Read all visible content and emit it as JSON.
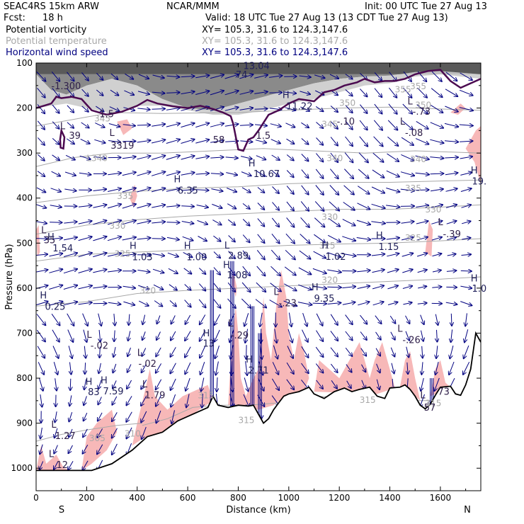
{
  "header": {
    "model": "SEAC4RS 15km ARW",
    "org": "NCAR/MMM",
    "init": "Init: 00 UTC Tue 27 Aug 13",
    "fcst_label": "Fcst:",
    "fcst_value": "18 h",
    "valid": "Valid: 18 UTC Tue 27 Aug 13 (13 CDT Tue 27 Aug 13)",
    "fields": [
      {
        "name": "Potential vorticity",
        "xy": "XY= 105.3, 31.6 to 124.3,147.6",
        "color": "#000000"
      },
      {
        "name": "Potential temperature",
        "xy": "XY= 105.3, 31.6 to 124.3,147.6",
        "color": "#a8a8a8"
      },
      {
        "name": "Horizontal wind speed",
        "xy": "XY= 105.3, 31.6 to 124.3,147.6",
        "color": "#000080"
      }
    ]
  },
  "colors": {
    "terrain": "#000000",
    "pv_line": "#4b0a50",
    "theta": "#a8a8a8",
    "wind": "#000080",
    "pink": "#f7b8b8",
    "grey_dark": "#5a5a5a",
    "grey_light": "#c8c8c8"
  },
  "chart_data": {
    "type": "cross-section",
    "xlabel": "Distance (km)",
    "ylabel": "Pressure (hPa)",
    "xlim": [
      0,
      1760
    ],
    "ylim": [
      1050,
      100
    ],
    "x_ticks": [
      "0",
      "200",
      "400",
      "600",
      "800",
      "1000",
      "1200",
      "1400",
      "1600"
    ],
    "y_ticks": [
      "100",
      "200",
      "300",
      "400",
      "500",
      "600",
      "700",
      "800",
      "900",
      "1000"
    ],
    "endpoints": {
      "left": "S",
      "right": "N"
    },
    "terrain": [
      [
        0,
        1005
      ],
      [
        60,
        1005
      ],
      [
        150,
        1005
      ],
      [
        220,
        1005
      ],
      [
        300,
        990
      ],
      [
        380,
        960
      ],
      [
        440,
        930
      ],
      [
        500,
        920
      ],
      [
        560,
        895
      ],
      [
        620,
        880
      ],
      [
        680,
        865
      ],
      [
        700,
        840
      ],
      [
        720,
        860
      ],
      [
        760,
        865
      ],
      [
        800,
        860
      ],
      [
        840,
        862
      ],
      [
        860,
        860
      ],
      [
        880,
        880
      ],
      [
        900,
        900
      ],
      [
        920,
        890
      ],
      [
        940,
        870
      ],
      [
        960,
        855
      ],
      [
        980,
        840
      ],
      [
        1000,
        835
      ],
      [
        1040,
        830
      ],
      [
        1080,
        820
      ],
      [
        1100,
        835
      ],
      [
        1140,
        845
      ],
      [
        1180,
        830
      ],
      [
        1220,
        822
      ],
      [
        1250,
        830
      ],
      [
        1280,
        825
      ],
      [
        1320,
        820
      ],
      [
        1350,
        840
      ],
      [
        1380,
        845
      ],
      [
        1400,
        822
      ],
      [
        1440,
        820
      ],
      [
        1460,
        815
      ],
      [
        1480,
        825
      ],
      [
        1500,
        840
      ],
      [
        1520,
        860
      ],
      [
        1540,
        868
      ],
      [
        1560,
        858
      ],
      [
        1580,
        838
      ],
      [
        1600,
        820
      ],
      [
        1640,
        818
      ],
      [
        1660,
        835
      ],
      [
        1680,
        838
      ],
      [
        1700,
        815
      ],
      [
        1720,
        780
      ],
      [
        1740,
        700
      ],
      [
        1760,
        720
      ]
    ],
    "pv_contour": [
      [
        0,
        200
      ],
      [
        30,
        195
      ],
      [
        60,
        190
      ],
      [
        80,
        175
      ],
      [
        100,
        178
      ],
      [
        140,
        175
      ],
      [
        180,
        180
      ],
      [
        220,
        205
      ],
      [
        280,
        215
      ],
      [
        340,
        208
      ],
      [
        400,
        195
      ],
      [
        440,
        182
      ],
      [
        480,
        190
      ],
      [
        540,
        196
      ],
      [
        600,
        200
      ],
      [
        650,
        195
      ],
      [
        700,
        202
      ],
      [
        740,
        210
      ],
      [
        770,
        218
      ],
      [
        780,
        235
      ],
      [
        800,
        292
      ],
      [
        820,
        295
      ],
      [
        840,
        270
      ],
      [
        860,
        265
      ],
      [
        880,
        250
      ],
      [
        920,
        215
      ],
      [
        960,
        205
      ],
      [
        1000,
        190
      ],
      [
        1040,
        180
      ],
      [
        1100,
        185
      ],
      [
        1140,
        165
      ],
      [
        1180,
        160
      ],
      [
        1220,
        150
      ],
      [
        1270,
        143
      ],
      [
        1300,
        135
      ],
      [
        1340,
        143
      ],
      [
        1380,
        140
      ],
      [
        1420,
        140
      ],
      [
        1460,
        135
      ],
      [
        1500,
        125
      ],
      [
        1550,
        118
      ],
      [
        1600,
        115
      ],
      [
        1640,
        140
      ],
      [
        1680,
        155
      ],
      [
        1720,
        145
      ],
      [
        1760,
        135
      ]
    ],
    "pv_closed_loop": [
      [
        95,
        270
      ],
      [
        100,
        250
      ],
      [
        112,
        265
      ],
      [
        108,
        290
      ],
      [
        97,
        288
      ]
    ],
    "theta_contours": [
      {
        "label": "345",
        "points": [
          [
            0,
            240
          ],
          [
            150,
            225
          ],
          [
            300,
            210
          ],
          [
            500,
            212
          ],
          [
            800,
            210
          ],
          [
            1000,
            205
          ],
          [
            1200,
            200
          ],
          [
            1400,
            198
          ],
          [
            1600,
            202
          ],
          [
            1760,
            205
          ]
        ]
      },
      {
        "label": "340",
        "points": [
          [
            0,
            330
          ],
          [
            150,
            310
          ],
          [
            300,
            300
          ],
          [
            500,
            300
          ],
          [
            700,
            295
          ],
          [
            900,
            290
          ],
          [
            1100,
            295
          ],
          [
            1300,
            300
          ],
          [
            1500,
            295
          ],
          [
            1760,
            300
          ]
        ]
      },
      {
        "label": "335",
        "points": [
          [
            0,
            410
          ],
          [
            200,
            395
          ],
          [
            400,
            385
          ],
          [
            600,
            378
          ],
          [
            800,
            375
          ],
          [
            1000,
            368
          ],
          [
            1200,
            365
          ],
          [
            1400,
            365
          ],
          [
            1600,
            362
          ],
          [
            1760,
            360
          ]
        ]
      },
      {
        "label": "330",
        "points": [
          [
            0,
            480
          ],
          [
            200,
            460
          ],
          [
            400,
            448
          ],
          [
            600,
            440
          ],
          [
            800,
            435
          ],
          [
            1000,
            430
          ],
          [
            1200,
            425
          ],
          [
            1400,
            425
          ],
          [
            1600,
            420
          ],
          [
            1760,
            415
          ]
        ]
      },
      {
        "label": "325",
        "points": [
          [
            0,
            540
          ],
          [
            200,
            525
          ],
          [
            400,
            520
          ],
          [
            600,
            515
          ],
          [
            800,
            510
          ],
          [
            1000,
            505
          ],
          [
            1200,
            502
          ],
          [
            1400,
            500
          ],
          [
            1600,
            495
          ],
          [
            1760,
            490
          ]
        ]
      },
      {
        "label": "320",
        "points": [
          [
            0,
            640
          ],
          [
            200,
            630
          ],
          [
            400,
            612
          ],
          [
            600,
            605
          ],
          [
            800,
            600
          ],
          [
            1000,
            595
          ],
          [
            1200,
            590
          ],
          [
            1400,
            585
          ],
          [
            1600,
            580
          ],
          [
            1760,
            575
          ]
        ]
      },
      {
        "label": "315",
        "points": [
          [
            420,
            905
          ],
          [
            520,
            890
          ],
          [
            620,
            865
          ],
          [
            720,
            860
          ],
          [
            840,
            860
          ],
          [
            960,
            855
          ],
          [
            1100,
            840
          ],
          [
            1300,
            845
          ],
          [
            1500,
            850
          ],
          [
            1600,
            850
          ]
        ]
      },
      {
        "label": "305",
        "points": [
          [
            0,
            940
          ],
          [
            100,
            925
          ],
          [
            200,
            915
          ],
          [
            320,
            905
          ],
          [
            420,
            900
          ]
        ]
      }
    ],
    "labels_low": [
      {
        "x": 60,
        "p": 158,
        "text": "-1.300"
      },
      {
        "x": 95,
        "p": 247,
        "text": "L"
      },
      {
        "x": 130,
        "p": 268,
        "text": "39"
      },
      {
        "x": 290,
        "p": 262,
        "text": "L"
      },
      {
        "x": 295,
        "p": 290,
        "text": "3319"
      },
      {
        "x": 20,
        "p": 478,
        "text": "L"
      },
      {
        "x": 30,
        "p": 500,
        "text": "35"
      },
      {
        "x": 200,
        "p": 710,
        "text": "L"
      },
      {
        "x": 215,
        "p": 735,
        "text": "-.02"
      },
      {
        "x": 400,
        "p": 750,
        "text": "L"
      },
      {
        "x": 405,
        "p": 775,
        "text": "-.02"
      },
      {
        "x": 420,
        "p": 820,
        "text": "L"
      },
      {
        "x": 430,
        "p": 845,
        "text": "1.79"
      },
      {
        "x": 60,
        "p": 910,
        "text": "L"
      },
      {
        "x": 75,
        "p": 935,
        "text": "1.27"
      },
      {
        "x": 50,
        "p": 975,
        "text": "L"
      },
      {
        "x": 80,
        "p": 1000,
        "text": "12"
      },
      {
        "x": 760,
        "p": 685,
        "text": "L"
      },
      {
        "x": 770,
        "p": 712,
        "text": "-.29"
      },
      {
        "x": 940,
        "p": 615,
        "text": "L"
      },
      {
        "x": 960,
        "p": 640,
        "text": "-.23"
      },
      {
        "x": 1430,
        "p": 697,
        "text": "L"
      },
      {
        "x": 1450,
        "p": 722,
        "text": "-.26"
      },
      {
        "x": 1520,
        "p": 845,
        "text": "L"
      },
      {
        "x": 1535,
        "p": 872,
        "text": "57"
      },
      {
        "x": 1590,
        "p": 837,
        "text": "73"
      },
      {
        "x": 1470,
        "p": 192,
        "text": "L"
      },
      {
        "x": 1490,
        "p": 215,
        "text": "-.73"
      },
      {
        "x": 1440,
        "p": 237,
        "text": "L"
      },
      {
        "x": 1460,
        "p": 262,
        "text": "-.08"
      },
      {
        "x": 1190,
        "p": 237,
        "text": "-.10"
      },
      {
        "x": 1590,
        "p": 460,
        "text": "L"
      },
      {
        "x": 1610,
        "p": 487,
        "text": "-.39"
      },
      {
        "x": 700,
        "p": 278,
        "text": "58"
      },
      {
        "x": 870,
        "p": 268,
        "text": "1.5"
      },
      {
        "x": 250,
        "p": 220,
        "text": "1.5"
      }
    ],
    "labels_high": [
      {
        "x": 45,
        "p": 493,
        "text": "H"
      },
      {
        "x": 65,
        "p": 518,
        "text": "1.54"
      },
      {
        "x": 370,
        "p": 513,
        "text": "H"
      },
      {
        "x": 380,
        "p": 538,
        "text": "1.03"
      },
      {
        "x": 585,
        "p": 513,
        "text": "H"
      },
      {
        "x": 595,
        "p": 538,
        "text": "1.00"
      },
      {
        "x": 545,
        "p": 365,
        "text": "H"
      },
      {
        "x": 560,
        "p": 390,
        "text": "6.35"
      },
      {
        "x": 745,
        "p": 512,
        "text": "L"
      },
      {
        "x": 760,
        "p": 535,
        "text": "2.89"
      },
      {
        "x": 740,
        "p": 555,
        "text": "H"
      },
      {
        "x": 755,
        "p": 578,
        "text": "1.08"
      },
      {
        "x": 840,
        "p": 330,
        "text": "H"
      },
      {
        "x": 860,
        "p": 353,
        "text": "10.67"
      },
      {
        "x": 975,
        "p": 178,
        "text": "H"
      },
      {
        "x": 990,
        "p": 203,
        "text": "11.22"
      },
      {
        "x": 1090,
        "p": 605,
        "text": "H"
      },
      {
        "x": 1100,
        "p": 630,
        "text": "9.35"
      },
      {
        "x": 1130,
        "p": 512,
        "text": "H"
      },
      {
        "x": 1145,
        "p": 537,
        "text": "1.02"
      },
      {
        "x": 1345,
        "p": 490,
        "text": "H"
      },
      {
        "x": 1355,
        "p": 515,
        "text": "1.15"
      },
      {
        "x": 1720,
        "p": 345,
        "text": "H"
      },
      {
        "x": 1725,
        "p": 370,
        "text": "19."
      },
      {
        "x": 1720,
        "p": 585,
        "text": "H"
      },
      {
        "x": 1725,
        "p": 608,
        "text": "1.0"
      },
      {
        "x": 15,
        "p": 623,
        "text": "H"
      },
      {
        "x": 35,
        "p": 648,
        "text": "0.25"
      },
      {
        "x": 660,
        "p": 707,
        "text": "H"
      },
      {
        "x": 660,
        "p": 730,
        "text": "13"
      },
      {
        "x": 195,
        "p": 815,
        "text": "H"
      },
      {
        "x": 205,
        "p": 838,
        "text": "83"
      },
      {
        "x": 255,
        "p": 812,
        "text": "H"
      },
      {
        "x": 265,
        "p": 836,
        "text": "7.59"
      },
      {
        "x": 830,
        "p": 765,
        "text": "H"
      },
      {
        "x": 840,
        "p": 790,
        "text": "2.71"
      },
      {
        "x": 820,
        "p": 113,
        "text": "13.04"
      },
      {
        "x": 790,
        "p": 133,
        "text": "74"
      }
    ],
    "theta_labels": [
      {
        "x": 230,
        "p": 230,
        "text": "345"
      },
      {
        "x": 200,
        "p": 318,
        "text": "L340"
      },
      {
        "x": 320,
        "p": 402,
        "text": "335"
      },
      {
        "x": 290,
        "p": 468,
        "text": "330"
      },
      {
        "x": 310,
        "p": 530,
        "text": "325"
      },
      {
        "x": 410,
        "p": 612,
        "text": "320"
      },
      {
        "x": 1150,
        "p": 318,
        "text": "340"
      },
      {
        "x": 1130,
        "p": 242,
        "text": "345"
      },
      {
        "x": 1130,
        "p": 448,
        "text": "330"
      },
      {
        "x": 1120,
        "p": 512,
        "text": "325"
      },
      {
        "x": 1130,
        "p": 588,
        "text": "320"
      },
      {
        "x": 1480,
        "p": 320,
        "text": "340"
      },
      {
        "x": 1460,
        "p": 385,
        "text": "335"
      },
      {
        "x": 1540,
        "p": 432,
        "text": "330"
      },
      {
        "x": 1460,
        "p": 495,
        "text": "325"
      },
      {
        "x": 1420,
        "p": 165,
        "text": "355"
      },
      {
        "x": 1480,
        "p": 158,
        "text": "355"
      },
      {
        "x": 1500,
        "p": 200,
        "text": "350"
      },
      {
        "x": 1200,
        "p": 195,
        "text": "350"
      },
      {
        "x": 800,
        "p": 900,
        "text": "315"
      },
      {
        "x": 640,
        "p": 845,
        "text": "315"
      },
      {
        "x": 1280,
        "p": 855,
        "text": "315"
      },
      {
        "x": 1540,
        "p": 862,
        "text": "315"
      },
      {
        "x": 350,
        "p": 930,
        "text": "310"
      },
      {
        "x": 210,
        "p": 940,
        "text": "305"
      }
    ]
  }
}
